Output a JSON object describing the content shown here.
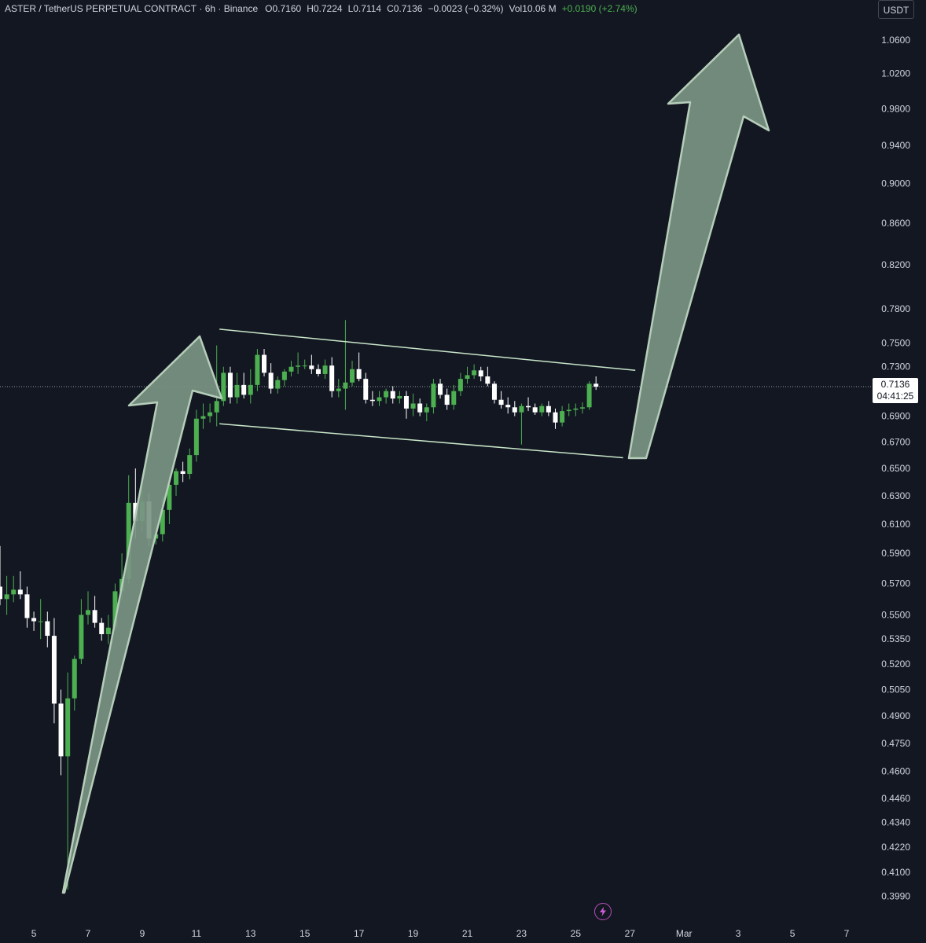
{
  "header": {
    "symbol": "ASTER / TetherUS PERPETUAL CONTRACT",
    "sep1": " · ",
    "interval": "6h",
    "sep2": " · ",
    "exchange": "Binance",
    "open_label": "O",
    "open": "0.7160",
    "high_label": "H",
    "high": "0.7224",
    "low_label": "L",
    "low": "0.7114",
    "close_label": "C",
    "close": "0.7136",
    "change": "−0.0023 (−0.32%)",
    "vol_label": "Vol",
    "volume": "10.06 M",
    "extra_change": "+0.0190 (+2.74%)"
  },
  "currency_button": "USDT",
  "last_price": {
    "price": "0.7136",
    "countdown": "04:41:25"
  },
  "colors": {
    "background": "#131722",
    "up": "#4caf50",
    "down": "#ffffff",
    "text": "#d1d4dc",
    "channel_line": "#c8e6c9",
    "arrow_fill": "#7a9583",
    "arrow_stroke": "#b5cdb9",
    "alert_icon": "#d05bd6"
  },
  "icons": {
    "alert": "lightning-bolt-icon"
  },
  "chart_data": {
    "type": "candlestick",
    "title": "ASTER / TetherUS PERPETUAL CONTRACT",
    "interval": "6h",
    "y_scale": "log",
    "ylim": [
      0.392,
      1.08
    ],
    "y_ticks": [
      "1.0600",
      "1.0200",
      "0.9800",
      "0.9400",
      "0.9000",
      "0.8600",
      "0.8200",
      "0.7800",
      "0.7500",
      "0.7300",
      "0.6900",
      "0.6700",
      "0.6500",
      "0.6300",
      "0.6100",
      "0.5900",
      "0.5700",
      "0.5500",
      "0.5350",
      "0.5200",
      "0.5050",
      "0.4900",
      "0.4750",
      "0.4600",
      "0.4460",
      "0.4340",
      "0.4220",
      "0.4100",
      "0.3990"
    ],
    "x_ticks": [
      "5",
      "7",
      "9",
      "11",
      "13",
      "15",
      "17",
      "19",
      "21",
      "23",
      "25",
      "27",
      "Mar",
      "3",
      "5",
      "7"
    ],
    "x_tick_days": [
      5,
      7,
      9,
      11,
      13,
      15,
      17,
      19,
      21,
      23,
      25,
      27,
      29,
      31,
      33,
      35
    ],
    "x_range_days": [
      3.75,
      35.9
    ],
    "last_price": 0.7136,
    "grid": false,
    "candles": [
      {
        "d": 3.75,
        "o": 0.568,
        "h": 0.595,
        "l": 0.556,
        "c": 0.56
      },
      {
        "d": 4.0,
        "o": 0.56,
        "h": 0.575,
        "l": 0.55,
        "c": 0.563
      },
      {
        "d": 4.25,
        "o": 0.563,
        "h": 0.575,
        "l": 0.558,
        "c": 0.566
      },
      {
        "d": 4.5,
        "o": 0.566,
        "h": 0.578,
        "l": 0.56,
        "c": 0.563
      },
      {
        "d": 4.75,
        "o": 0.563,
        "h": 0.568,
        "l": 0.542,
        "c": 0.548
      },
      {
        "d": 5.0,
        "o": 0.548,
        "h": 0.552,
        "l": 0.54,
        "c": 0.546
      },
      {
        "d": 5.25,
        "o": 0.546,
        "h": 0.56,
        "l": 0.535,
        "c": 0.546
      },
      {
        "d": 5.5,
        "o": 0.546,
        "h": 0.552,
        "l": 0.53,
        "c": 0.537
      },
      {
        "d": 5.75,
        "o": 0.537,
        "h": 0.548,
        "l": 0.486,
        "c": 0.497
      },
      {
        "d": 6.0,
        "o": 0.497,
        "h": 0.505,
        "l": 0.458,
        "c": 0.468
      },
      {
        "d": 6.25,
        "o": 0.468,
        "h": 0.515,
        "l": 0.402,
        "c": 0.5
      },
      {
        "d": 6.5,
        "o": 0.5,
        "h": 0.525,
        "l": 0.493,
        "c": 0.523
      },
      {
        "d": 6.75,
        "o": 0.523,
        "h": 0.56,
        "l": 0.52,
        "c": 0.55
      },
      {
        "d": 7.0,
        "o": 0.55,
        "h": 0.565,
        "l": 0.544,
        "c": 0.553
      },
      {
        "d": 7.25,
        "o": 0.553,
        "h": 0.562,
        "l": 0.542,
        "c": 0.545
      },
      {
        "d": 7.5,
        "o": 0.545,
        "h": 0.548,
        "l": 0.534,
        "c": 0.538
      },
      {
        "d": 7.75,
        "o": 0.538,
        "h": 0.55,
        "l": 0.532,
        "c": 0.542
      },
      {
        "d": 8.0,
        "o": 0.542,
        "h": 0.57,
        "l": 0.54,
        "c": 0.565
      },
      {
        "d": 8.25,
        "o": 0.565,
        "h": 0.59,
        "l": 0.56,
        "c": 0.573
      },
      {
        "d": 8.5,
        "o": 0.573,
        "h": 0.645,
        "l": 0.57,
        "c": 0.625
      },
      {
        "d": 8.75,
        "o": 0.625,
        "h": 0.65,
        "l": 0.6,
        "c": 0.612
      },
      {
        "d": 9.0,
        "o": 0.612,
        "h": 0.635,
        "l": 0.605,
        "c": 0.626
      },
      {
        "d": 9.25,
        "o": 0.626,
        "h": 0.632,
        "l": 0.595,
        "c": 0.6
      },
      {
        "d": 9.5,
        "o": 0.6,
        "h": 0.615,
        "l": 0.596,
        "c": 0.603
      },
      {
        "d": 9.75,
        "o": 0.603,
        "h": 0.63,
        "l": 0.598,
        "c": 0.62
      },
      {
        "d": 10.0,
        "o": 0.62,
        "h": 0.645,
        "l": 0.61,
        "c": 0.638
      },
      {
        "d": 10.25,
        "o": 0.638,
        "h": 0.65,
        "l": 0.63,
        "c": 0.648
      },
      {
        "d": 10.5,
        "o": 0.648,
        "h": 0.655,
        "l": 0.64,
        "c": 0.646
      },
      {
        "d": 10.75,
        "o": 0.646,
        "h": 0.665,
        "l": 0.642,
        "c": 0.66
      },
      {
        "d": 11.0,
        "o": 0.66,
        "h": 0.695,
        "l": 0.655,
        "c": 0.688
      },
      {
        "d": 11.25,
        "o": 0.688,
        "h": 0.7,
        "l": 0.68,
        "c": 0.69
      },
      {
        "d": 11.5,
        "o": 0.69,
        "h": 0.7,
        "l": 0.685,
        "c": 0.693
      },
      {
        "d": 11.75,
        "o": 0.693,
        "h": 0.748,
        "l": 0.682,
        "c": 0.702
      },
      {
        "d": 12.0,
        "o": 0.702,
        "h": 0.73,
        "l": 0.698,
        "c": 0.725
      },
      {
        "d": 12.25,
        "o": 0.725,
        "h": 0.73,
        "l": 0.7,
        "c": 0.705
      },
      {
        "d": 12.5,
        "o": 0.705,
        "h": 0.725,
        "l": 0.7,
        "c": 0.715
      },
      {
        "d": 12.75,
        "o": 0.715,
        "h": 0.725,
        "l": 0.704,
        "c": 0.707
      },
      {
        "d": 13.0,
        "o": 0.707,
        "h": 0.728,
        "l": 0.7,
        "c": 0.715
      },
      {
        "d": 13.25,
        "o": 0.715,
        "h": 0.745,
        "l": 0.71,
        "c": 0.74
      },
      {
        "d": 13.5,
        "o": 0.74,
        "h": 0.745,
        "l": 0.722,
        "c": 0.725
      },
      {
        "d": 13.75,
        "o": 0.725,
        "h": 0.733,
        "l": 0.708,
        "c": 0.712
      },
      {
        "d": 14.0,
        "o": 0.712,
        "h": 0.722,
        "l": 0.708,
        "c": 0.719
      },
      {
        "d": 14.25,
        "o": 0.719,
        "h": 0.728,
        "l": 0.714,
        "c": 0.726
      },
      {
        "d": 14.5,
        "o": 0.726,
        "h": 0.735,
        "l": 0.722,
        "c": 0.73
      },
      {
        "d": 14.75,
        "o": 0.73,
        "h": 0.742,
        "l": 0.724,
        "c": 0.731
      },
      {
        "d": 15.0,
        "o": 0.731,
        "h": 0.736,
        "l": 0.728,
        "c": 0.731
      },
      {
        "d": 15.25,
        "o": 0.731,
        "h": 0.74,
        "l": 0.724,
        "c": 0.728
      },
      {
        "d": 15.5,
        "o": 0.728,
        "h": 0.732,
        "l": 0.722,
        "c": 0.724
      },
      {
        "d": 15.75,
        "o": 0.724,
        "h": 0.736,
        "l": 0.72,
        "c": 0.731
      },
      {
        "d": 16.0,
        "o": 0.731,
        "h": 0.738,
        "l": 0.705,
        "c": 0.71
      },
      {
        "d": 16.25,
        "o": 0.71,
        "h": 0.72,
        "l": 0.705,
        "c": 0.712
      },
      {
        "d": 16.5,
        "o": 0.712,
        "h": 0.77,
        "l": 0.695,
        "c": 0.717
      },
      {
        "d": 16.75,
        "o": 0.717,
        "h": 0.735,
        "l": 0.714,
        "c": 0.728
      },
      {
        "d": 17.0,
        "o": 0.728,
        "h": 0.742,
        "l": 0.718,
        "c": 0.72
      },
      {
        "d": 17.25,
        "o": 0.72,
        "h": 0.725,
        "l": 0.7,
        "c": 0.703
      },
      {
        "d": 17.5,
        "o": 0.703,
        "h": 0.71,
        "l": 0.698,
        "c": 0.702
      },
      {
        "d": 17.75,
        "o": 0.702,
        "h": 0.71,
        "l": 0.698,
        "c": 0.705
      },
      {
        "d": 18.0,
        "o": 0.705,
        "h": 0.712,
        "l": 0.7,
        "c": 0.71
      },
      {
        "d": 18.25,
        "o": 0.71,
        "h": 0.714,
        "l": 0.7,
        "c": 0.704
      },
      {
        "d": 18.5,
        "o": 0.704,
        "h": 0.71,
        "l": 0.7,
        "c": 0.706
      },
      {
        "d": 18.75,
        "o": 0.706,
        "h": 0.71,
        "l": 0.688,
        "c": 0.696
      },
      {
        "d": 19.0,
        "o": 0.696,
        "h": 0.708,
        "l": 0.69,
        "c": 0.7
      },
      {
        "d": 19.25,
        "o": 0.7,
        "h": 0.704,
        "l": 0.69,
        "c": 0.693
      },
      {
        "d": 19.5,
        "o": 0.693,
        "h": 0.7,
        "l": 0.686,
        "c": 0.697
      },
      {
        "d": 19.75,
        "o": 0.697,
        "h": 0.72,
        "l": 0.692,
        "c": 0.716
      },
      {
        "d": 20.0,
        "o": 0.716,
        "h": 0.72,
        "l": 0.704,
        "c": 0.707
      },
      {
        "d": 20.25,
        "o": 0.707,
        "h": 0.712,
        "l": 0.695,
        "c": 0.699
      },
      {
        "d": 20.5,
        "o": 0.699,
        "h": 0.715,
        "l": 0.695,
        "c": 0.71
      },
      {
        "d": 20.75,
        "o": 0.71,
        "h": 0.725,
        "l": 0.706,
        "c": 0.72
      },
      {
        "d": 21.0,
        "o": 0.72,
        "h": 0.73,
        "l": 0.716,
        "c": 0.723
      },
      {
        "d": 21.25,
        "o": 0.723,
        "h": 0.732,
        "l": 0.72,
        "c": 0.727
      },
      {
        "d": 21.5,
        "o": 0.727,
        "h": 0.73,
        "l": 0.718,
        "c": 0.722
      },
      {
        "d": 21.75,
        "o": 0.722,
        "h": 0.73,
        "l": 0.714,
        "c": 0.716
      },
      {
        "d": 22.0,
        "o": 0.716,
        "h": 0.718,
        "l": 0.7,
        "c": 0.703
      },
      {
        "d": 22.25,
        "o": 0.703,
        "h": 0.71,
        "l": 0.696,
        "c": 0.699
      },
      {
        "d": 22.5,
        "o": 0.699,
        "h": 0.705,
        "l": 0.692,
        "c": 0.697
      },
      {
        "d": 22.75,
        "o": 0.697,
        "h": 0.702,
        "l": 0.69,
        "c": 0.693
      },
      {
        "d": 23.0,
        "o": 0.693,
        "h": 0.7,
        "l": 0.668,
        "c": 0.698
      },
      {
        "d": 23.25,
        "o": 0.698,
        "h": 0.705,
        "l": 0.694,
        "c": 0.697
      },
      {
        "d": 23.5,
        "o": 0.697,
        "h": 0.7,
        "l": 0.691,
        "c": 0.693
      },
      {
        "d": 23.75,
        "o": 0.693,
        "h": 0.7,
        "l": 0.69,
        "c": 0.698
      },
      {
        "d": 24.0,
        "o": 0.698,
        "h": 0.702,
        "l": 0.69,
        "c": 0.693
      },
      {
        "d": 24.25,
        "o": 0.693,
        "h": 0.696,
        "l": 0.68,
        "c": 0.685
      },
      {
        "d": 24.5,
        "o": 0.685,
        "h": 0.698,
        "l": 0.682,
        "c": 0.694
      },
      {
        "d": 24.75,
        "o": 0.694,
        "h": 0.7,
        "l": 0.69,
        "c": 0.695
      },
      {
        "d": 25.0,
        "o": 0.695,
        "h": 0.7,
        "l": 0.69,
        "c": 0.696
      },
      {
        "d": 25.25,
        "o": 0.696,
        "h": 0.701,
        "l": 0.692,
        "c": 0.697
      },
      {
        "d": 25.5,
        "o": 0.697,
        "h": 0.718,
        "l": 0.695,
        "c": 0.716
      },
      {
        "d": 25.75,
        "o": 0.716,
        "h": 0.722,
        "l": 0.711,
        "c": 0.7136
      }
    ],
    "channel": {
      "upper": [
        {
          "d": 11.85,
          "v": 0.762
        },
        {
          "d": 27.2,
          "v": 0.727
        }
      ],
      "lower": [
        {
          "d": 11.85,
          "v": 0.684
        },
        {
          "d": 26.75,
          "v": 0.658
        }
      ]
    }
  }
}
